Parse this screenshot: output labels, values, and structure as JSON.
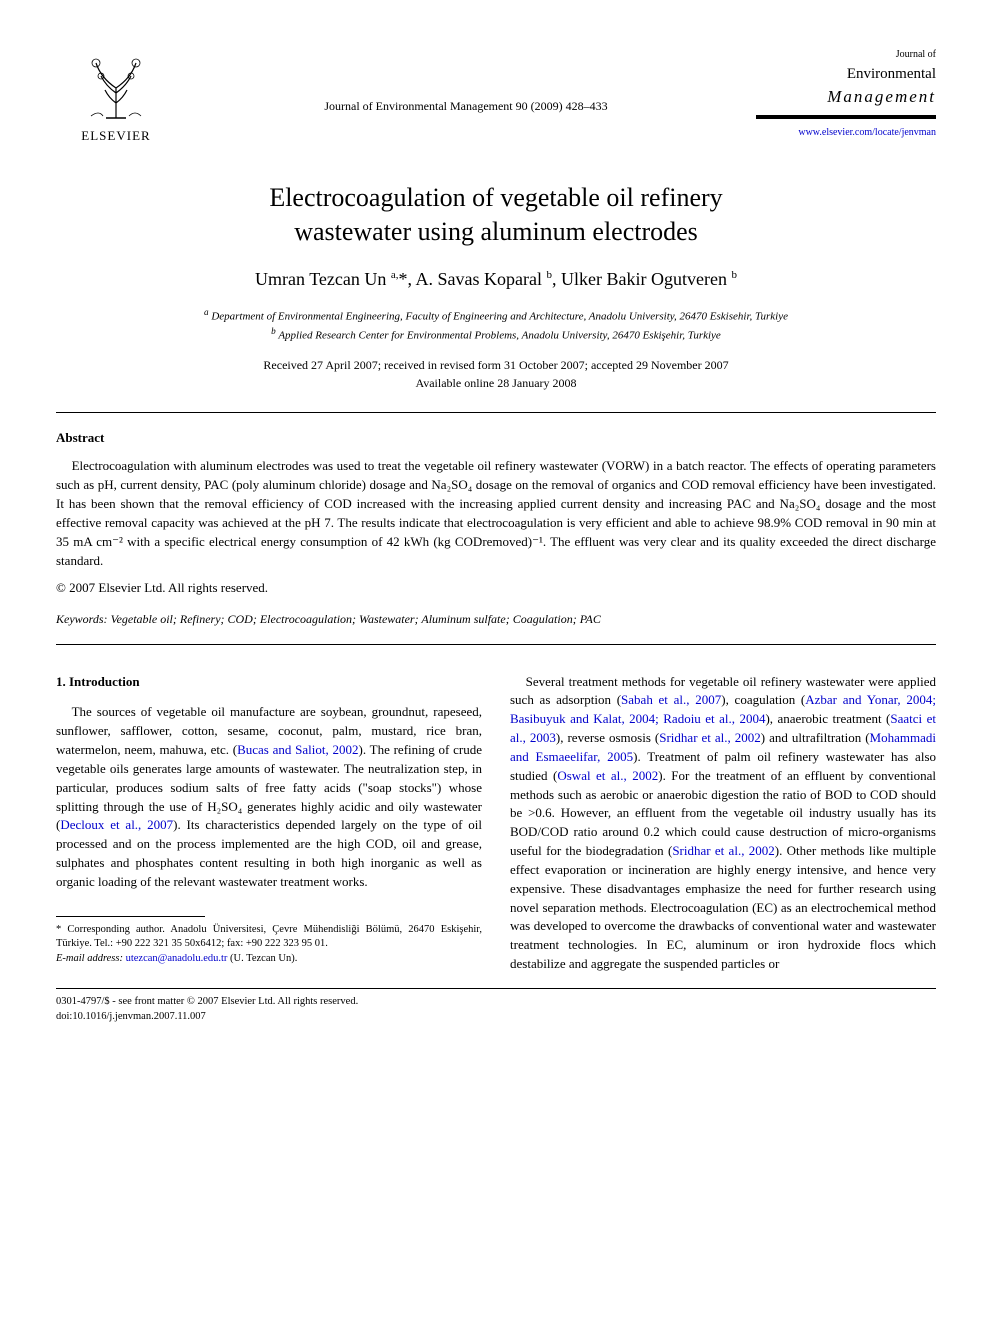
{
  "header": {
    "publisher_name": "ELSEVIER",
    "journal_ref": "Journal of Environmental Management 90 (2009) 428–433",
    "journal_small": "Journal of",
    "journal_env": "Environmental",
    "journal_mgmt": "Management",
    "journal_link": "www.elsevier.com/locate/jenvman"
  },
  "title_line1": "Electrocoagulation of vegetable oil refinery",
  "title_line2": "wastewater using aluminum electrodes",
  "authors_html": "Umran Tezcan Un <sup>a,</sup>*, A. Savas Koparal <sup>b</sup>, Ulker Bakir Ogutveren <sup>b</sup>",
  "affiliations": {
    "a": "Department of Environmental Engineering, Faculty of Engineering and Architecture, Anadolu University, 26470 Eskisehir, Turkiye",
    "b": "Applied Research Center for Environmental Problems, Anadolu University, 26470 Eskişehir, Turkiye"
  },
  "dates": {
    "received": "Received 27 April 2007; received in revised form 31 October 2007; accepted 29 November 2007",
    "online": "Available online 28 January 2008"
  },
  "abstract": {
    "heading": "Abstract",
    "body": "Electrocoagulation with aluminum electrodes was used to treat the vegetable oil refinery wastewater (VORW) in a batch reactor. The effects of operating parameters such as pH, current density, PAC (poly aluminum chloride) dosage and Na₂SO₄ dosage on the removal of organics and COD removal efficiency have been investigated. It has been shown that the removal efficiency of COD increased with the increasing applied current density and increasing PAC and Na₂SO₄ dosage and the most effective removal capacity was achieved at the pH 7. The results indicate that electrocoagulation is very efficient and able to achieve 98.9% COD removal in 90 min at 35 mA cm⁻² with a specific electrical energy consumption of 42 kWh (kg CODremoved)⁻¹. The effluent was very clear and its quality exceeded the direct discharge standard.",
    "copyright": "© 2007 Elsevier Ltd. All rights reserved."
  },
  "keywords": {
    "label": "Keywords:",
    "text": "Vegetable oil; Refinery; COD; Electrocoagulation; Wastewater; Aluminum sulfate; Coagulation; PAC"
  },
  "section1": {
    "heading": "1. Introduction",
    "col1_p1_a": "The sources of vegetable oil manufacture are soybean, groundnut, rapeseed, sunflower, safflower, cotton, sesame, coconut, palm, mustard, rice bran, watermelon, neem, mahuwa, etc. (",
    "col1_cite1": "Bucas and Saliot, 2002",
    "col1_p1_b": "). The refining of crude vegetable oils generates large amounts of wastewater. The neutralization step, in particular, produces sodium salts of free fatty acids (\"soap stocks\") whose splitting through the use of H₂SO₄ generates highly acidic and oily wastewater (",
    "col1_cite2": "Decloux et al., 2007",
    "col1_p1_c": "). Its characteristics depended largely on the type of oil processed and on the process implemented are the high COD, oil and grease, sulphates and phosphates content resulting in both high inorganic as well as organic loading of the relevant wastewater treatment works.",
    "col2_p1_a": "Several treatment methods for vegetable oil refinery wastewater were applied such as adsorption (",
    "col2_cite1": "Sabah et al., 2007",
    "col2_p1_b": "), coagulation (",
    "col2_cite2": "Azbar and Yonar, 2004; Basibuyuk and Kalat, 2004; Radoiu et al., 2004",
    "col2_p1_c": "), anaerobic treatment (",
    "col2_cite3": "Saatci et al., 2003",
    "col2_p1_d": "), reverse osmosis (",
    "col2_cite4": "Sridhar et al., 2002",
    "col2_p1_e": ") and ultrafiltration (",
    "col2_cite5": "Mohammadi and Esmaeelifar, 2005",
    "col2_p1_f": "). Treatment of palm oil refinery wastewater has also studied (",
    "col2_cite6": "Oswal et al., 2002",
    "col2_p1_g": "). For the treatment of an effluent by conventional methods such as aerobic or anaerobic digestion the ratio of BOD to COD should be >0.6. However, an effluent from the vegetable oil industry usually has its BOD/COD ratio around 0.2 which could cause destruction of micro-organisms useful for the biodegradation (",
    "col2_cite7": "Sridhar et al., 2002",
    "col2_p1_h": "). Other methods like multiple effect evaporation or incineration are highly energy intensive, and hence very expensive. These disadvantages emphasize the need for further research using novel separation methods. Electrocoagulation (EC) as an electrochemical method was developed to overcome the drawbacks of conventional water and wastewater treatment technologies. In EC, aluminum or iron hydroxide flocs which destabilize and aggregate the suspended particles or"
  },
  "footnote": {
    "corr": "* Corresponding author. Anadolu Üniversitesi, Çevre Mühendisliği Bölümü, 26470 Eskişehir, Türkiye. Tel.: +90 222 321 35 50x6412; fax: +90 222 323 95 01.",
    "email_label": "E-mail address:",
    "email": "utezcan@anadolu.edu.tr",
    "email_who": "(U. Tezcan Un)."
  },
  "footer": {
    "line1": "0301-4797/$ - see front matter © 2007 Elsevier Ltd. All rights reserved.",
    "line2": "doi:10.1016/j.jenvman.2007.11.007"
  },
  "colors": {
    "link": "#0000cc",
    "text": "#000000",
    "background": "#ffffff"
  }
}
